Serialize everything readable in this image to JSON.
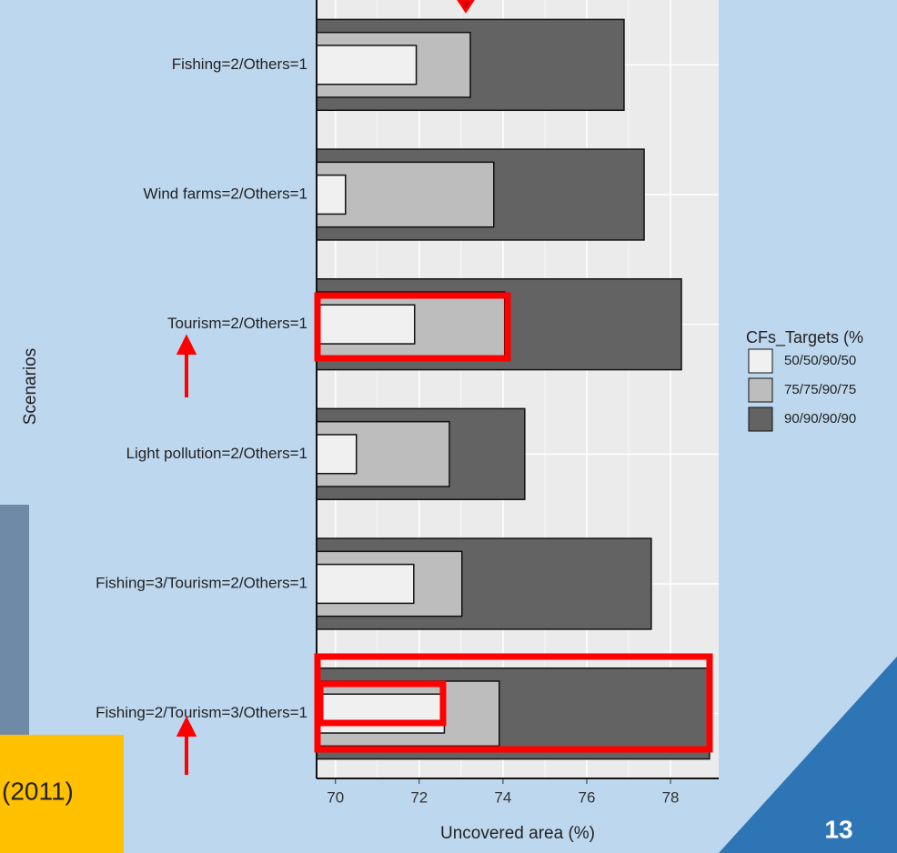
{
  "chart_data": {
    "type": "bar",
    "orientation": "horizontal",
    "categories": [
      "Fishing=2/Others=1",
      "Wind farms=2/Others=1",
      "Tourism=2/Others=1",
      "Light pollution=2/Others=1",
      "Fishing=3/Tourism=2/Others=1",
      "Fishing=2/Tourism=3/Others=1"
    ],
    "series": [
      {
        "name": "90/90/90/90",
        "color": "#636363",
        "values": [
          76.89,
          77.37,
          78.26,
          74.52,
          77.54,
          78.93
        ]
      },
      {
        "name": "75/75/90/75",
        "color": "#bdbdbd",
        "values": [
          73.22,
          73.78,
          74.04,
          72.72,
          73.02,
          73.91
        ]
      },
      {
        "name": "50/50/90/50",
        "color": "#f0f0f0",
        "values": [
          71.93,
          70.24,
          71.89,
          70.5,
          71.87,
          72.6
        ]
      }
    ],
    "xlabel": "Uncovered area (%)",
    "ylabel": "Scenarios",
    "legend_title": "CFs_Targets (%",
    "xlim": [
      69.55,
      79.15
    ],
    "xticks": [
      70,
      72,
      74,
      76,
      78
    ],
    "grid": true
  },
  "slide": {
    "page_number": "13",
    "note": "(2011)"
  }
}
